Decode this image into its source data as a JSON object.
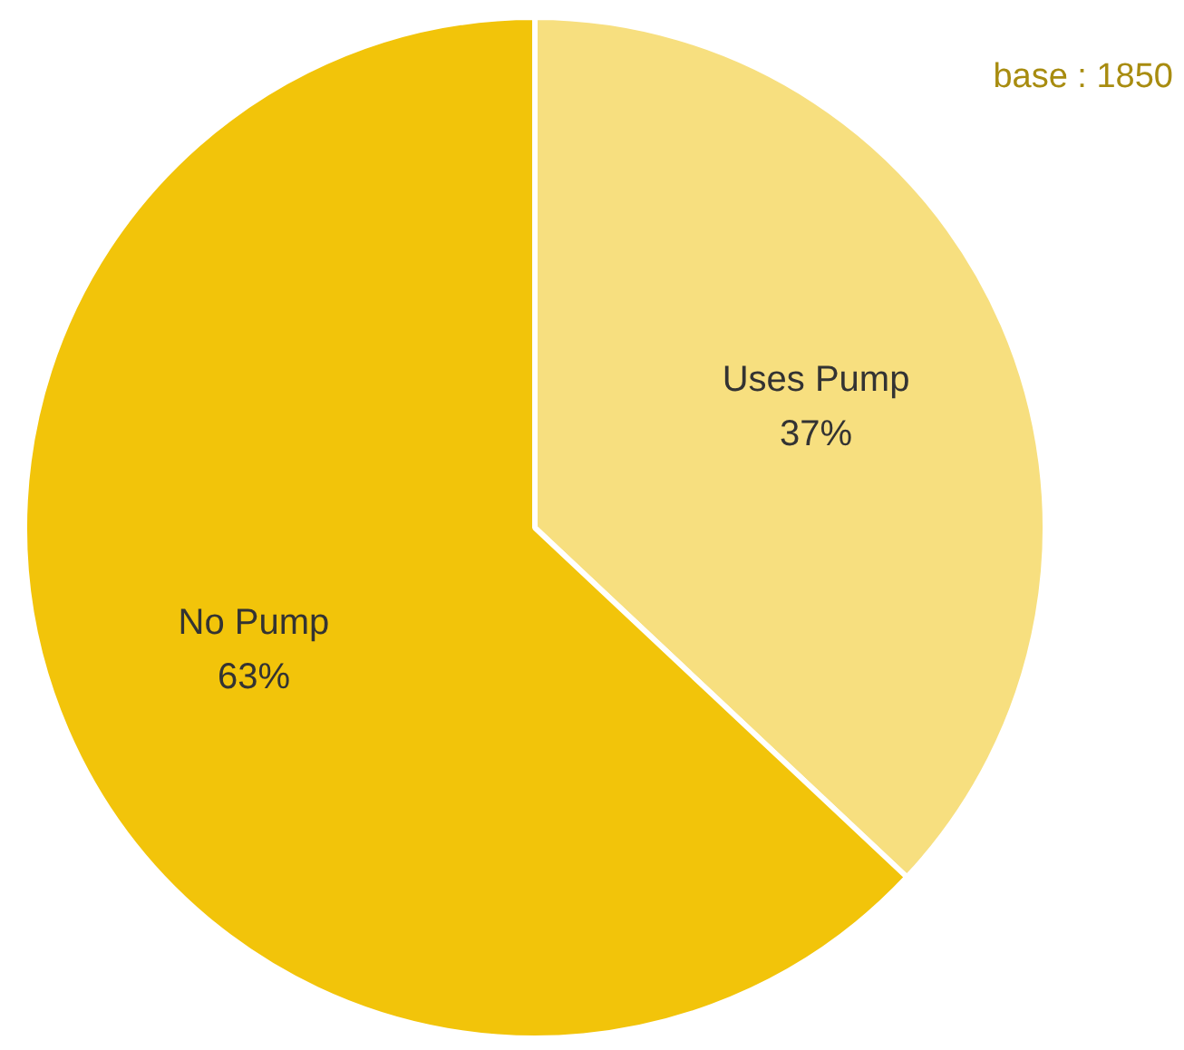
{
  "chart_data": {
    "type": "pie",
    "categories": [
      "Uses Pump",
      "No Pump"
    ],
    "values": [
      37,
      63
    ],
    "value_labels": [
      "37%",
      "63%"
    ],
    "colors": [
      "#f7df7f",
      "#f2c40a"
    ],
    "annotations": [
      "base : 1850"
    ],
    "legend": false
  }
}
